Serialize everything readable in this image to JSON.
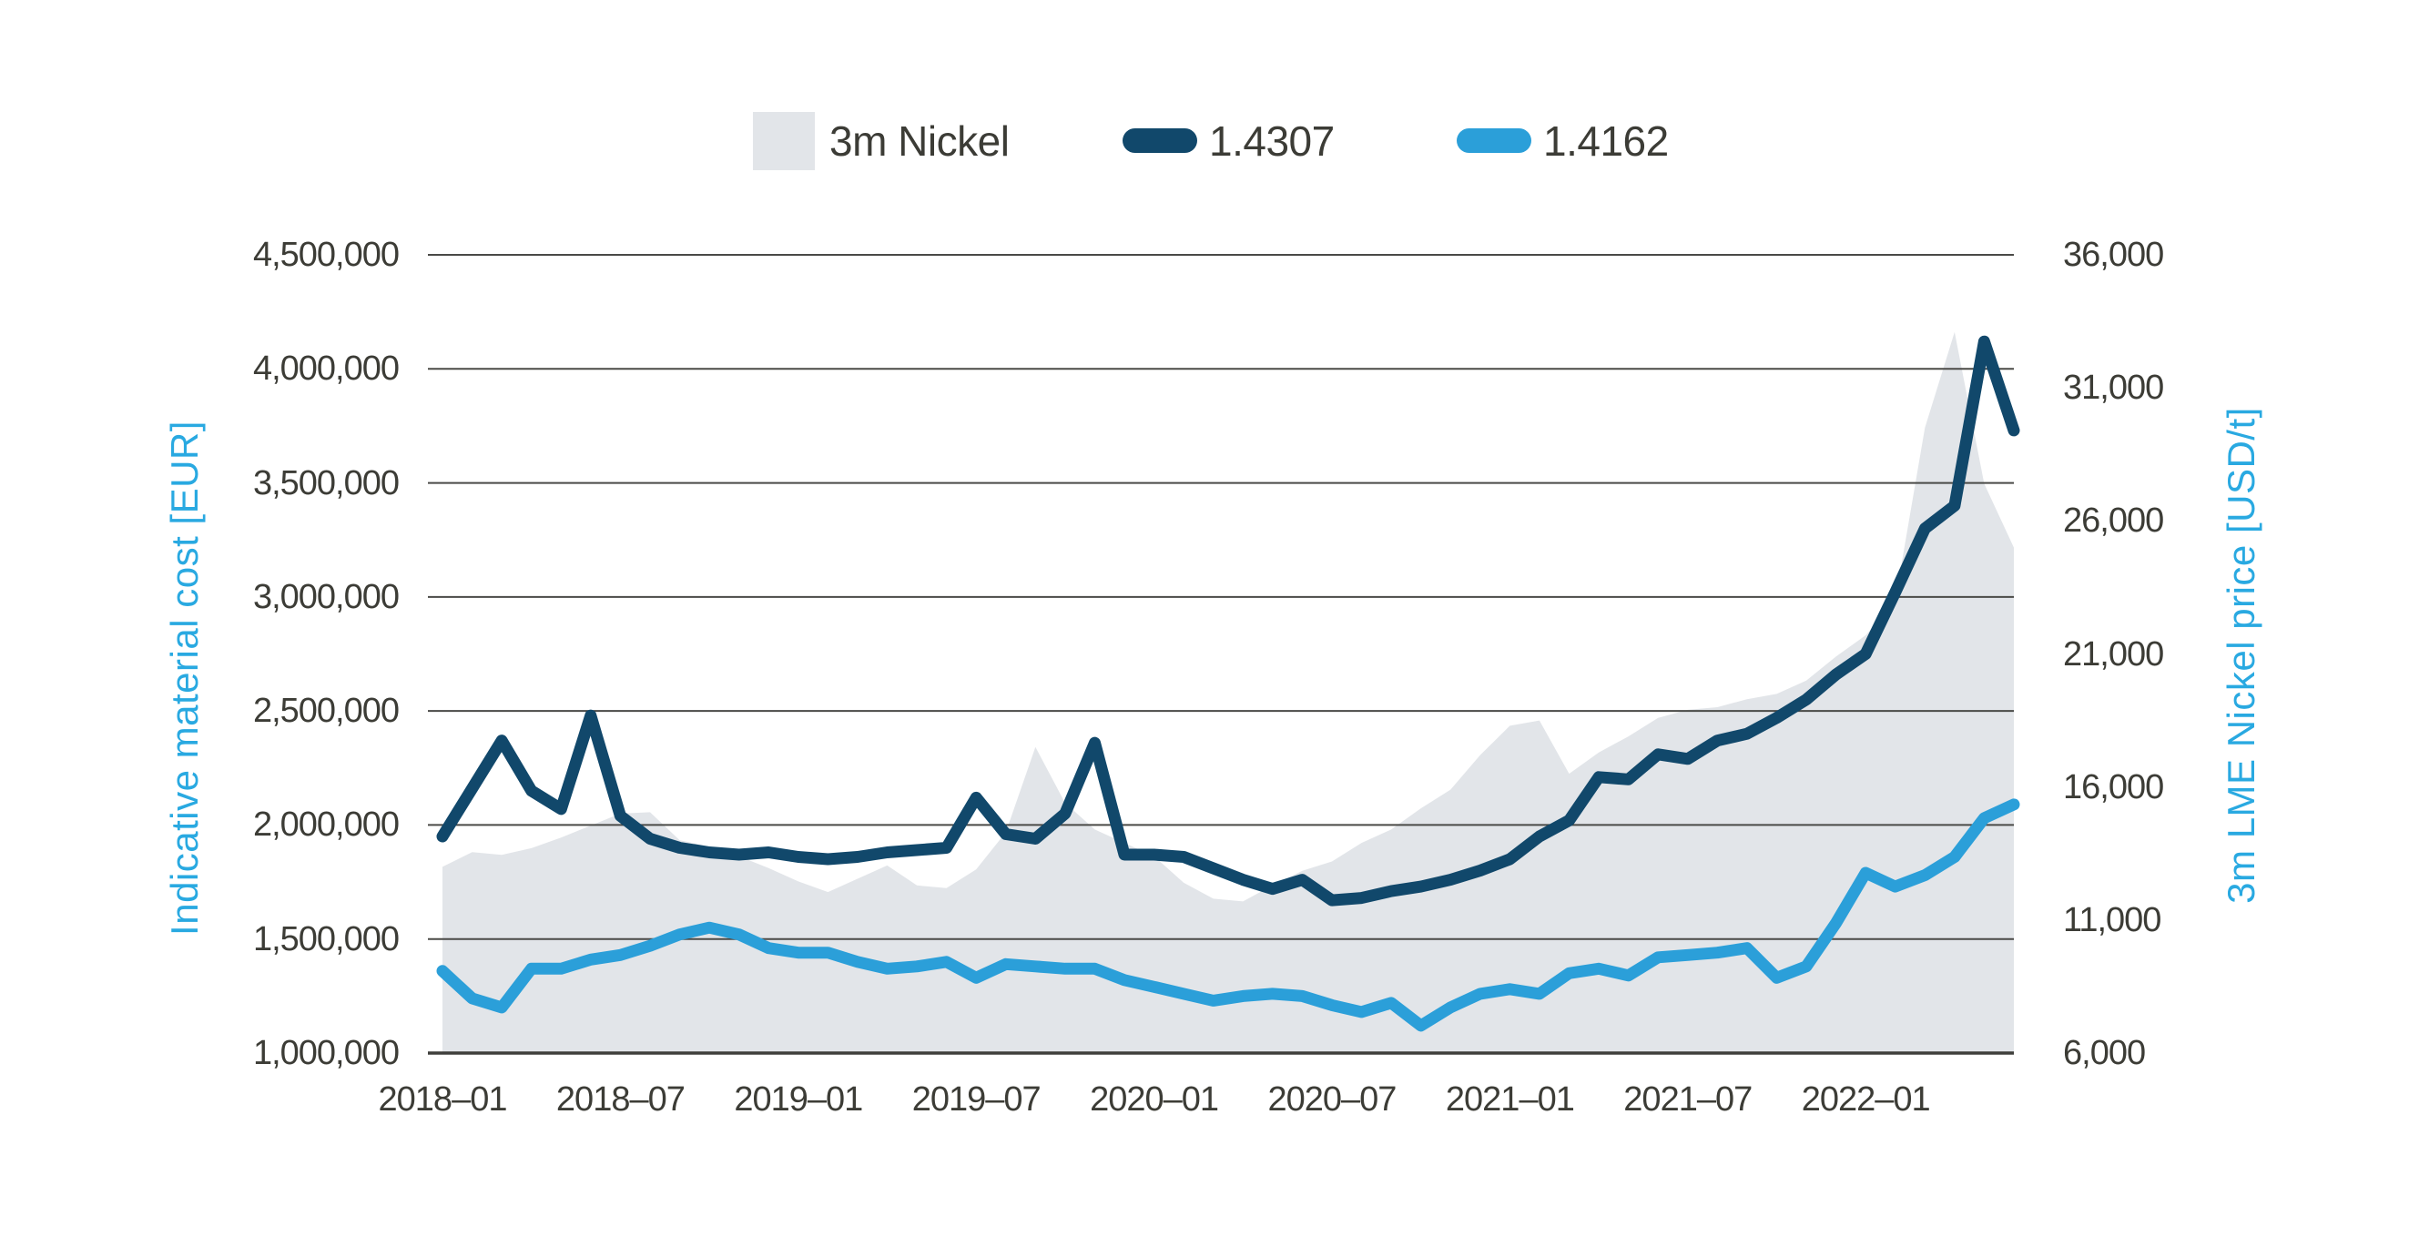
{
  "figure": {
    "background": "#ffffff"
  },
  "legend": {
    "items": [
      {
        "label": "3m Nickel",
        "swatch": "area-square",
        "color": "#E2E5E9"
      },
      {
        "label": "1.4307",
        "swatch": "line-pill",
        "color": "#11486B"
      },
      {
        "label": "1.4162",
        "swatch": "line-pill",
        "color": "#2B9FD9"
      }
    ]
  },
  "chart_data": {
    "type": "combo-area-line",
    "x": [
      "2018-01",
      "2018-02",
      "2018-03",
      "2018-04",
      "2018-05",
      "2018-06",
      "2018-07",
      "2018-08",
      "2018-09",
      "2018-10",
      "2018-11",
      "2018-12",
      "2019-01",
      "2019-02",
      "2019-03",
      "2019-04",
      "2019-05",
      "2019-06",
      "2019-07",
      "2019-08",
      "2019-09",
      "2019-10",
      "2019-11",
      "2019-12",
      "2020-01",
      "2020-02",
      "2020-03",
      "2020-04",
      "2020-05",
      "2020-06",
      "2020-07",
      "2020-08",
      "2020-09",
      "2020-10",
      "2020-11",
      "2020-12",
      "2021-01",
      "2021-02",
      "2021-03",
      "2021-04",
      "2021-05",
      "2021-06",
      "2021-07",
      "2021-08",
      "2021-09",
      "2021-10",
      "2021-11",
      "2021-12",
      "2022-01",
      "2022-02",
      "2022-03",
      "2022-04",
      "2022-05",
      "2022-06"
    ],
    "x_ticks": [
      {
        "label": "2018–01",
        "month_index": 0
      },
      {
        "label": "2018–07",
        "month_index": 6
      },
      {
        "label": "2019–01",
        "month_index": 12
      },
      {
        "label": "2019–07",
        "month_index": 18
      },
      {
        "label": "2020–01",
        "month_index": 24
      },
      {
        "label": "2020–07",
        "month_index": 30
      },
      {
        "label": "2021–01",
        "month_index": 36
      },
      {
        "label": "2021–07",
        "month_index": 42
      },
      {
        "label": "2022–01",
        "month_index": 48
      }
    ],
    "left_axis": {
      "title": "Indicative material cost [EUR]",
      "range": [
        1000000,
        4500000
      ],
      "title_color": "#29A9E1",
      "tick_text_color": "#3C3C36",
      "ticks": [
        {
          "label": "4,500,000",
          "value": 4500000
        },
        {
          "label": "4,000,000",
          "value": 4000000
        },
        {
          "label": "3,500,000",
          "value": 3500000
        },
        {
          "label": "3,000,000",
          "value": 3000000
        },
        {
          "label": "2,500,000",
          "value": 2500000
        },
        {
          "label": "2,000,000",
          "value": 2000000
        },
        {
          "label": "1,500,000",
          "value": 1500000
        },
        {
          "label": "1,000,000",
          "value": 1000000
        }
      ]
    },
    "right_axis": {
      "title": "3m LME Nickel price [USD/t]",
      "range": [
        6000,
        36000
      ],
      "title_color": "#29A9E1",
      "tick_text_color": "#3C3C36",
      "ticks": [
        {
          "label": "36,000",
          "value": 36000
        },
        {
          "label": "31,000",
          "value": 31000
        },
        {
          "label": "26,000",
          "value": 26000
        },
        {
          "label": "21,000",
          "value": 21000
        },
        {
          "label": "16,000",
          "value": 16000
        },
        {
          "label": "11,000",
          "value": 11000
        },
        {
          "label": "6,000",
          "value": 6000
        }
      ]
    },
    "grid": {
      "color": "#4A4A47",
      "line_width": 2,
      "baseline_color": "#3E3E3B",
      "baseline_width": 3.5
    },
    "series": [
      {
        "name": "3m Nickel",
        "type": "area",
        "axis": "right",
        "color": "#E2E5E9",
        "values": [
          13000,
          13550,
          13450,
          13700,
          14100,
          14550,
          15000,
          15050,
          14000,
          13750,
          13400,
          12950,
          12450,
          12050,
          12550,
          13050,
          12300,
          12200,
          12900,
          14300,
          17500,
          15400,
          14400,
          13900,
          13400,
          12400,
          11800,
          11700,
          12300,
          12850,
          13200,
          13900,
          14400,
          15200,
          15900,
          17200,
          18300,
          18500,
          16500,
          17300,
          17900,
          18600,
          18900,
          19000,
          19300,
          19500,
          20000,
          20900,
          21700,
          23000,
          29500,
          33100,
          27400,
          25000
        ]
      },
      {
        "name": "1.4307",
        "type": "line",
        "axis": "left",
        "color": "#11486B",
        "stroke_width": 13,
        "values": [
          1950000,
          2160000,
          2370000,
          2150000,
          2070000,
          2480000,
          2040000,
          1940000,
          1900000,
          1880000,
          1870000,
          1880000,
          1860000,
          1850000,
          1860000,
          1880000,
          1890000,
          1900000,
          2120000,
          1960000,
          1940000,
          2050000,
          2360000,
          1870000,
          1870000,
          1860000,
          1810000,
          1760000,
          1720000,
          1760000,
          1670000,
          1680000,
          1710000,
          1730000,
          1760000,
          1800000,
          1850000,
          1950000,
          2020000,
          2210000,
          2200000,
          2310000,
          2290000,
          2370000,
          2400000,
          2470000,
          2550000,
          2660000,
          2750000,
          3020000,
          3300000,
          3400000,
          4120000,
          3730000
        ]
      },
      {
        "name": "1.4162",
        "type": "line",
        "axis": "left",
        "color": "#2B9FD9",
        "stroke_width": 13,
        "values": [
          1360000,
          1240000,
          1200000,
          1370000,
          1370000,
          1410000,
          1430000,
          1470000,
          1520000,
          1550000,
          1520000,
          1460000,
          1440000,
          1440000,
          1400000,
          1370000,
          1380000,
          1400000,
          1330000,
          1390000,
          1380000,
          1370000,
          1370000,
          1320000,
          1290000,
          1260000,
          1230000,
          1250000,
          1260000,
          1250000,
          1210000,
          1180000,
          1220000,
          1120000,
          1200000,
          1260000,
          1280000,
          1260000,
          1350000,
          1370000,
          1340000,
          1420000,
          1430000,
          1440000,
          1460000,
          1330000,
          1380000,
          1570000,
          1790000,
          1730000,
          1780000,
          1860000,
          2030000,
          2090000
        ]
      }
    ]
  }
}
